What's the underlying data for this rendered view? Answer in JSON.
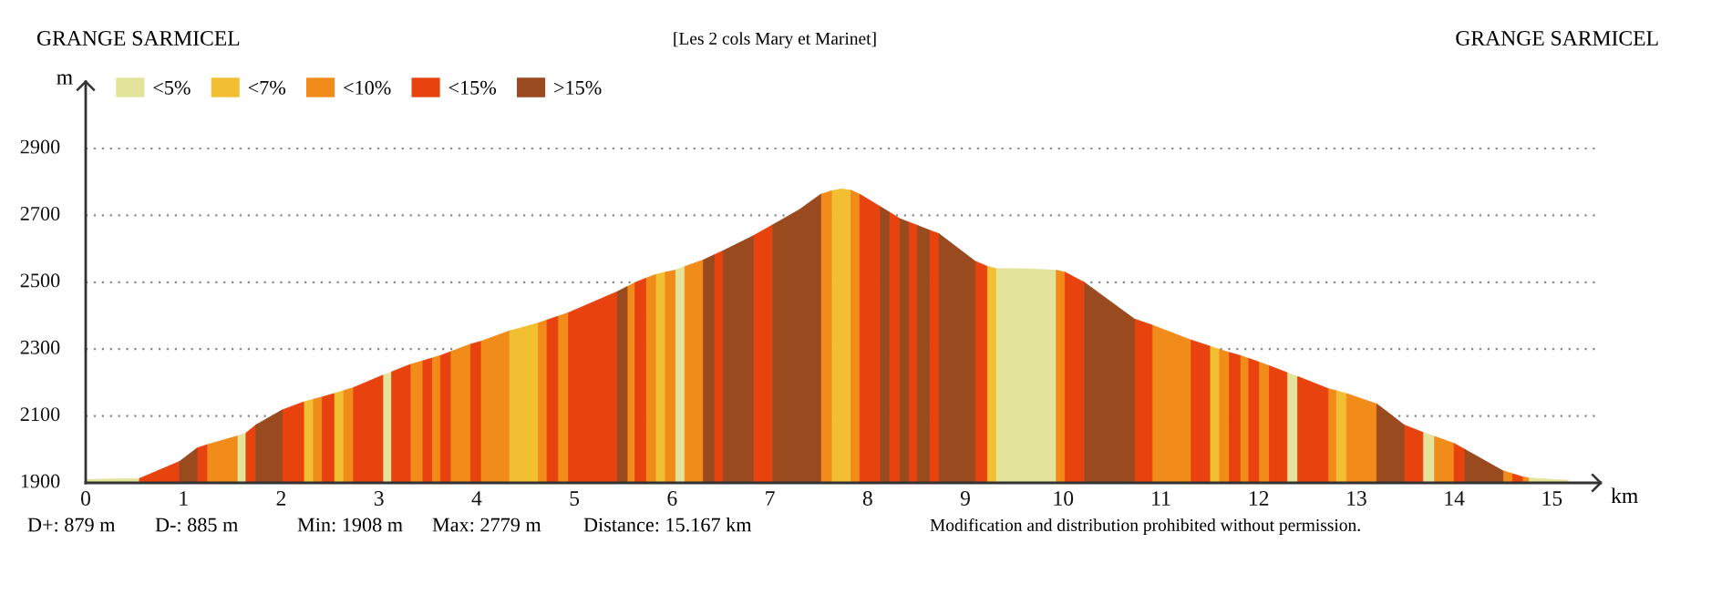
{
  "chart_data": {
    "type": "area",
    "title": "[Les 2 cols Mary et Marinet]",
    "xlabel": "km",
    "ylabel": "m",
    "annotations": [
      "GRANGE SARMICEL",
      "GRANGE SARMICEL",
      "D+: 879 m",
      "D-: 885 m",
      "Min: 1908 m",
      "Max: 2779 m",
      "Distance: 15.167 km",
      "Modification and distribution prohibited without permission."
    ],
    "xlim": [
      0,
      15.5
    ],
    "xticks": [
      0,
      1,
      2,
      3,
      4,
      5,
      6,
      7,
      8,
      9,
      10,
      11,
      12,
      13,
      14,
      15
    ],
    "ylim": [
      1900,
      3100
    ],
    "yticks": [
      1900,
      2100,
      2300,
      2500,
      2700,
      2900
    ],
    "grid": "y",
    "legend": "top left",
    "series": [
      {
        "name": "<5%",
        "color": "#e3e39c",
        "x": [
          0,
          0.55,
          null,
          1.55,
          1.64,
          null,
          3.04,
          3.13,
          null,
          6.03,
          6.13,
          null,
          9.31,
          9.62,
          9.93,
          null,
          12.29,
          12.4,
          null,
          13.68,
          13.8,
          null,
          14.76,
          15.0,
          15.167
        ],
        "values": [
          1910,
          1913,
          null,
          2040,
          2049,
          null,
          2222,
          2232,
          null,
          2536,
          2547,
          null,
          2541,
          2540,
          2536,
          null,
          2230,
          2218,
          null,
          2051,
          2039,
          null,
          1915,
          1910,
          1908
        ]
      },
      {
        "name": "<7%",
        "color": "#f3bf32",
        "x": [
          2.23,
          2.33,
          null,
          2.54,
          2.64,
          null,
          4.33,
          4.63,
          null,
          5.83,
          5.93,
          null,
          7.63,
          7.73,
          7.83,
          null,
          9.22,
          9.31,
          null,
          11.5,
          11.6,
          null,
          12.79,
          12.9
        ],
        "values": [
          2142,
          2150,
          null,
          2167,
          2176,
          null,
          2354,
          2378,
          null,
          2523,
          2530,
          null,
          2773,
          2779,
          2775,
          null,
          2548,
          2541,
          null,
          2309,
          2299,
          null,
          2176,
          2167
        ]
      },
      {
        "name": "<10%",
        "color": "#f18b1a",
        "x": [
          1.24,
          1.55,
          null,
          2.33,
          2.42,
          null,
          2.64,
          2.74,
          null,
          3.32,
          3.45,
          null,
          3.54,
          3.63,
          null,
          3.73,
          3.94,
          null,
          4.04,
          4.33,
          null,
          4.63,
          4.72,
          null,
          4.83,
          4.94,
          null,
          5.54,
          5.62,
          null,
          5.73,
          5.83,
          null,
          5.93,
          6.03,
          null,
          6.13,
          6.32,
          null,
          7.52,
          7.63,
          null,
          7.83,
          7.92,
          null,
          9.93,
          10.02,
          null,
          10.91,
          11.31,
          null,
          11.6,
          11.7,
          null,
          11.81,
          11.9,
          null,
          12.0,
          12.11,
          null,
          12.71,
          12.79,
          null,
          12.9,
          13.21,
          null,
          13.8,
          14.0,
          null,
          14.5,
          14.6,
          null,
          14.7,
          14.76
        ],
        "values": [
          2014,
          2040,
          null,
          2150,
          2157,
          null,
          2176,
          2185,
          null,
          2254,
          2265,
          null,
          2273,
          2281,
          null,
          2292,
          2315,
          null,
          2323,
          2354,
          null,
          2378,
          2387,
          null,
          2398,
          2409,
          null,
          2487,
          2499,
          null,
          2512,
          2523,
          null,
          2530,
          2536,
          null,
          2547,
          2567,
          null,
          2763,
          2773,
          null,
          2775,
          2763,
          null,
          2536,
          2530,
          null,
          2372,
          2327,
          null,
          2299,
          2290,
          null,
          2281,
          2272,
          null,
          2262,
          2250,
          null,
          2182,
          2176,
          null,
          2167,
          2136,
          null,
          2039,
          2018,
          null,
          1936,
          1927,
          null,
          1918,
          1915
        ]
      },
      {
        "name": "<15%",
        "color": "#e8420f",
        "x": [
          0.55,
          0.96,
          null,
          1.14,
          1.24,
          null,
          1.64,
          1.74,
          null,
          2.01,
          2.23,
          null,
          2.42,
          2.54,
          null,
          2.74,
          3.04,
          null,
          3.13,
          3.32,
          null,
          3.45,
          3.54,
          null,
          3.63,
          3.73,
          null,
          3.94,
          4.04,
          null,
          4.72,
          4.83,
          null,
          4.94,
          5.44,
          null,
          5.62,
          5.73,
          null,
          6.43,
          6.52,
          null,
          6.83,
          7.03,
          null,
          7.92,
          8.13,
          null,
          8.22,
          8.33,
          null,
          8.42,
          8.51,
          null,
          8.63,
          8.73,
          null,
          9.1,
          9.22,
          null,
          10.02,
          10.22,
          null,
          10.73,
          10.91,
          null,
          11.31,
          11.5,
          null,
          11.7,
          11.81,
          null,
          11.9,
          12.0,
          null,
          12.11,
          12.29,
          null,
          12.4,
          12.71,
          null,
          13.49,
          13.68,
          null,
          14.0,
          14.11,
          null,
          14.6,
          14.7
        ],
        "values": [
          1913,
          1964,
          null,
          2004,
          2014,
          null,
          2049,
          2073,
          null,
          2118,
          2142,
          null,
          2157,
          2167,
          null,
          2185,
          2222,
          null,
          2232,
          2254,
          null,
          2265,
          2273,
          null,
          2281,
          2292,
          null,
          2315,
          2323,
          null,
          2387,
          2398,
          null,
          2409,
          2472,
          null,
          2499,
          2512,
          null,
          2582,
          2594,
          null,
          2639,
          2672,
          null,
          2763,
          2726,
          null,
          2710,
          2690,
          null,
          2680,
          2670,
          null,
          2656,
          2645,
          null,
          2563,
          2548,
          null,
          2530,
          2499,
          null,
          2390,
          2372,
          null,
          2327,
          2309,
          null,
          2290,
          2281,
          null,
          2272,
          2262,
          null,
          2250,
          2230,
          null,
          2218,
          2182,
          null,
          2073,
          2051,
          null,
          2018,
          2000,
          null,
          1927,
          1918
        ]
      },
      {
        "name": ">15%",
        "color": "#9a4a1f",
        "x": [
          0.96,
          1.14,
          null,
          1.74,
          2.01,
          null,
          5.44,
          5.54,
          null,
          6.32,
          6.43,
          null,
          6.52,
          6.83,
          null,
          7.03,
          7.3,
          7.52,
          null,
          8.13,
          8.22,
          null,
          8.33,
          8.42,
          null,
          8.51,
          8.63,
          null,
          8.73,
          9.1,
          null,
          10.22,
          10.73,
          null,
          13.21,
          13.49,
          null,
          14.11,
          14.5
        ],
        "values": [
          1964,
          2004,
          null,
          2073,
          2118,
          null,
          2472,
          2487,
          null,
          2567,
          2582,
          null,
          2594,
          2639,
          null,
          2672,
          2717,
          2763,
          null,
          2726,
          2710,
          null,
          2690,
          2680,
          null,
          2670,
          2656,
          null,
          2645,
          2563,
          null,
          2499,
          2390,
          null,
          2136,
          2073,
          null,
          2000,
          1936
        ]
      }
    ]
  }
}
